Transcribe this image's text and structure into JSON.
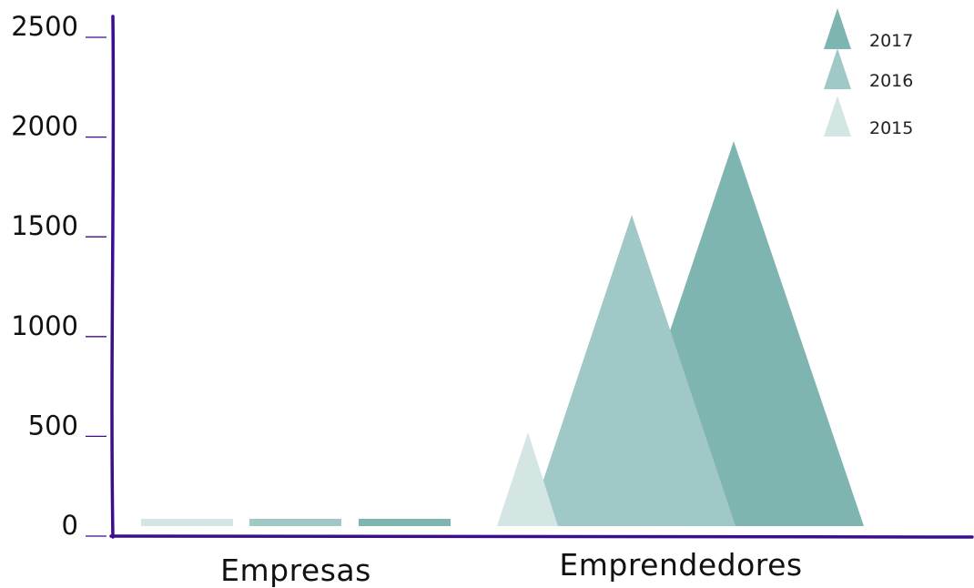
{
  "chart_data": {
    "type": "bar",
    "title": "",
    "xlabel": "",
    "ylabel": "",
    "categories": [
      "Empresas",
      "Emprendedores"
    ],
    "yticks": [
      "0",
      "500",
      "1000",
      "1500",
      "2000",
      "2500"
    ],
    "ylim": [
      0,
      2500
    ],
    "series": [
      {
        "name": "2015",
        "color": "#d3e6e3",
        "values": [
          20,
          470
        ]
      },
      {
        "name": "2016",
        "color": "#a0c8c6",
        "values": [
          20,
          1560
        ]
      },
      {
        "name": "2017",
        "color": "#7fb5b0",
        "values": [
          20,
          1930
        ]
      }
    ],
    "legend": {
      "placement": "top-right",
      "order": [
        "2017",
        "2016",
        "2015"
      ]
    },
    "axis_color": "#3b0e8c",
    "grid": false,
    "marker_shape": "triangle"
  }
}
